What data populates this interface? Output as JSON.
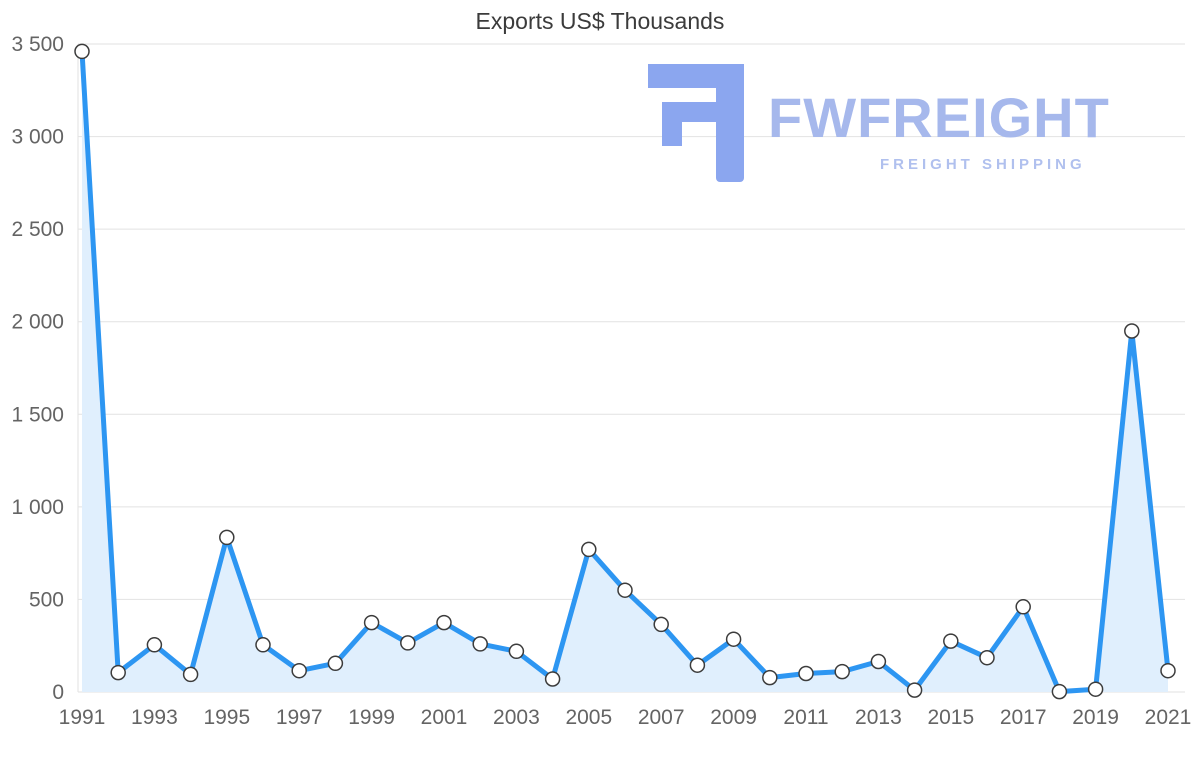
{
  "page": {
    "background": "#ffffff"
  },
  "logo": {
    "brand": "FWFREIGHT",
    "tagline": "FREIGHT SHIPPING",
    "mark_color": "#8ba6ef",
    "brand_color": "#a6b8ec"
  },
  "chart_data": {
    "type": "area",
    "title": "Exports US$ Thousands",
    "x": [
      1991,
      1992,
      1993,
      1994,
      1995,
      1996,
      1997,
      1998,
      1999,
      2000,
      2001,
      2002,
      2003,
      2004,
      2005,
      2006,
      2007,
      2008,
      2009,
      2010,
      2011,
      2012,
      2013,
      2014,
      2015,
      2016,
      2017,
      2018,
      2019,
      2020,
      2021
    ],
    "values": [
      3460,
      105,
      255,
      95,
      835,
      255,
      115,
      155,
      375,
      265,
      375,
      260,
      220,
      70,
      770,
      550,
      365,
      145,
      285,
      78,
      100,
      110,
      165,
      10,
      275,
      185,
      460,
      2,
      15,
      1950,
      115
    ],
    "xlabel": "",
    "ylabel": "",
    "ylim": [
      0,
      3500
    ],
    "y_ticks": [
      0,
      500,
      1000,
      1500,
      2000,
      2500,
      3000,
      3500
    ],
    "y_tick_labels": [
      "0",
      "500",
      "1 000",
      "1 500",
      "2 000",
      "2 500",
      "3 000",
      "3 500"
    ],
    "x_tick_step": 2,
    "x_tick_labels": [
      "1991",
      "1993",
      "1995",
      "1997",
      "1999",
      "2001",
      "2003",
      "2005",
      "2007",
      "2009",
      "2011",
      "2013",
      "2015",
      "2017",
      "2019",
      "2021"
    ],
    "grid": "horizontal",
    "legend": "none",
    "line_color": "#2d96f2",
    "area_color": "#e0effd",
    "grid_color": "#e2e2e2",
    "tick_color": "#646464",
    "marker": {
      "shape": "circle",
      "fill": "#ffffff",
      "stroke": "#3c3c3c"
    }
  }
}
